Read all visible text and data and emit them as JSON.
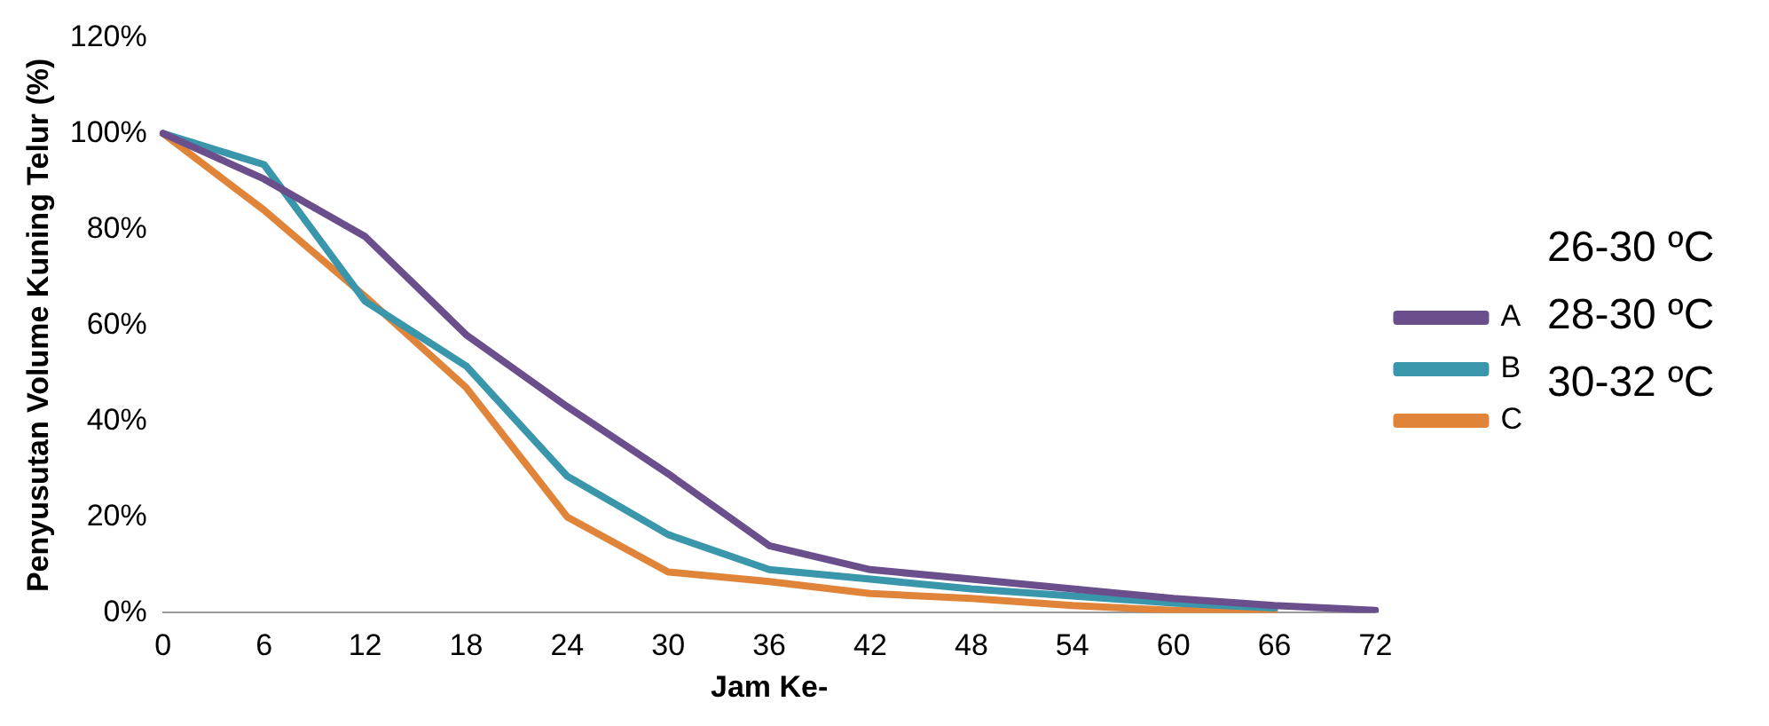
{
  "chart_data": {
    "type": "line",
    "xlabel": "Jam Ke-",
    "ylabel": "Penyusutan Volume Kuning Telur (%)",
    "categories": [
      "0",
      "6",
      "12",
      "18",
      "24",
      "30",
      "36",
      "42",
      "48",
      "54",
      "60",
      "66",
      "72"
    ],
    "series": [
      {
        "name": "A",
        "color": "#6b4f8c",
        "values": [
          100,
          90.5,
          78.5,
          58,
          43,
          29,
          14,
          9,
          7,
          5,
          3,
          1.5,
          0.5
        ]
      },
      {
        "name": "B",
        "color": "#3a97ab",
        "values": [
          100,
          93.5,
          65,
          51.5,
          28.5,
          16.3,
          9,
          7,
          5,
          3.5,
          2,
          1,
          null
        ]
      },
      {
        "name": "C",
        "color": "#e0843a",
        "values": [
          100,
          84,
          66,
          47,
          20,
          8.5,
          6.5,
          4,
          3,
          1.5,
          0.5,
          0.5,
          null
        ]
      }
    ],
    "ylim": [
      0,
      120
    ],
    "yticks": [
      {
        "value": 0,
        "label": "0%"
      },
      {
        "value": 20,
        "label": "20%"
      },
      {
        "value": 40,
        "label": "40%"
      },
      {
        "value": 60,
        "label": "60%"
      },
      {
        "value": 80,
        "label": "80%"
      },
      {
        "value": 100,
        "label": "100%"
      },
      {
        "value": 120,
        "label": "120%"
      }
    ],
    "grid": false,
    "legend": "right",
    "marker": "none",
    "line_style": "solid",
    "annotations": [
      "26-30 ºC",
      "28-30 ºC",
      "30-32 ºC"
    ]
  }
}
